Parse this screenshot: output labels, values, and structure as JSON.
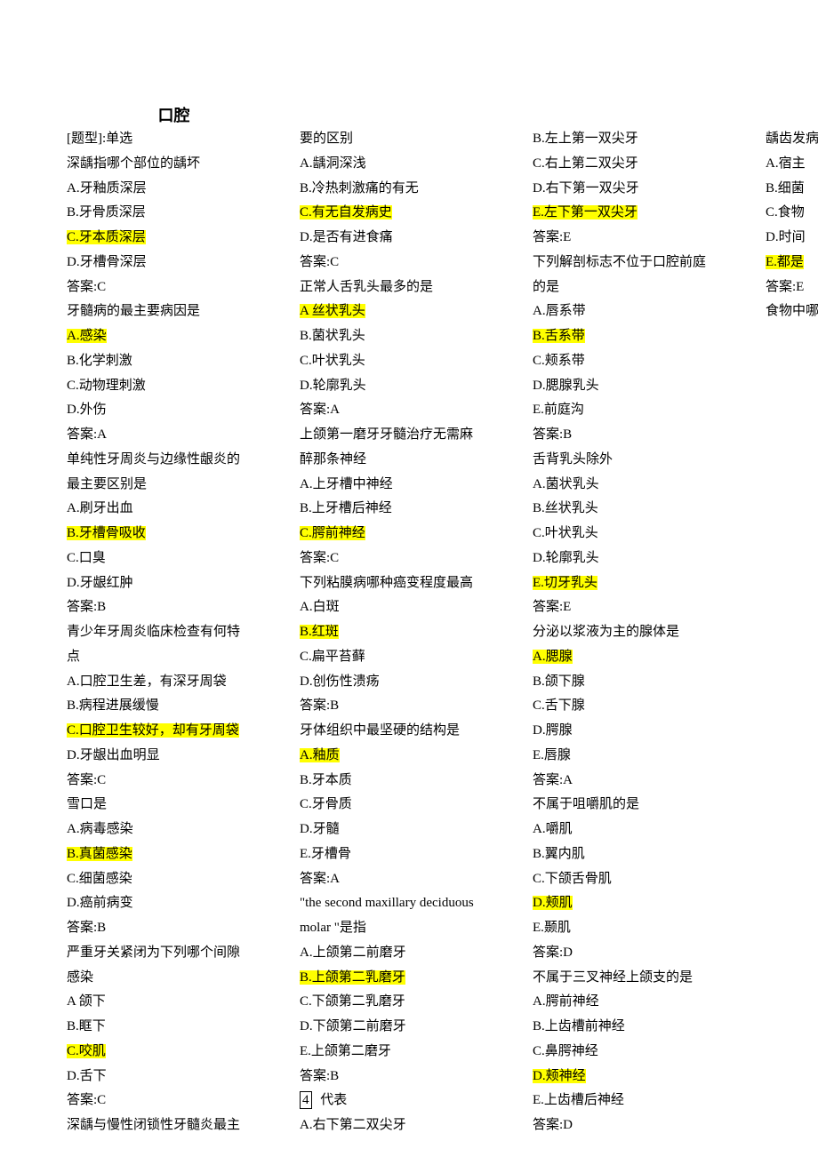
{
  "title": "口腔",
  "lines": [
    {
      "text": "[题型]:单选",
      "hl": false
    },
    {
      "text": "深龋指哪个部位的龋坏",
      "hl": false
    },
    {
      "text": "A.牙釉质深层",
      "hl": false
    },
    {
      "text": "B.牙骨质深层",
      "hl": false
    },
    {
      "text": "C.牙本质深层",
      "hl": true
    },
    {
      "text": "D.牙槽骨深层",
      "hl": false
    },
    {
      "text": "答案:C",
      "hl": false
    },
    {
      "text": "牙髓病的最主要病因是",
      "hl": false
    },
    {
      "text": "A.感染",
      "hl": true
    },
    {
      "text": "B.化学刺激",
      "hl": false
    },
    {
      "text": "C.动物理刺激",
      "hl": false
    },
    {
      "text": "D.外伤",
      "hl": false
    },
    {
      "text": "答案:A",
      "hl": false
    },
    {
      "text": "单纯性牙周炎与边缘性龈炎的",
      "hl": false
    },
    {
      "text": "最主要区别是",
      "hl": false
    },
    {
      "text": "A.刷牙出血",
      "hl": false
    },
    {
      "text": "B.牙槽骨吸收",
      "hl": true
    },
    {
      "text": "C.口臭",
      "hl": false
    },
    {
      "text": "D.牙龈红肿",
      "hl": false
    },
    {
      "text": "答案:B",
      "hl": false
    },
    {
      "text": "青少年牙周炎临床检查有何特",
      "hl": false
    },
    {
      "text": "点",
      "hl": false
    },
    {
      "text": "A.口腔卫生差，有深牙周袋",
      "hl": false
    },
    {
      "text": "B.病程进展缓慢",
      "hl": false
    },
    {
      "text": "C.口腔卫生较好，却有牙周袋",
      "hl": true
    },
    {
      "text": "D.牙龈出血明显",
      "hl": false
    },
    {
      "text": "答案:C",
      "hl": false
    },
    {
      "text": "雪口是",
      "hl": false
    },
    {
      "text": "A.病毒感染",
      "hl": false
    },
    {
      "text": "B.真菌感染",
      "hl": true
    },
    {
      "text": "C.细菌感染",
      "hl": false
    },
    {
      "text": "D.癌前病变",
      "hl": false
    },
    {
      "text": "答案:B",
      "hl": false
    },
    {
      "text": "严重牙关紧闭为下列哪个间隙",
      "hl": false
    },
    {
      "text": "感染",
      "hl": false
    },
    {
      "text": "A 颌下",
      "hl": false
    },
    {
      "text": "B.眶下",
      "hl": false
    },
    {
      "text": "C.咬肌",
      "hl": true
    },
    {
      "text": "D.舌下",
      "hl": false
    },
    {
      "text": "答案:C",
      "hl": false
    },
    {
      "text": "深龋与慢性闭锁性牙髓炎最主",
      "hl": false
    },
    {
      "text": "要的区别",
      "hl": false
    },
    {
      "text": "A.龋洞深浅",
      "hl": false
    },
    {
      "text": "B.冷热刺激痛的有无",
      "hl": false
    },
    {
      "text": "C.有无自发病史",
      "hl": true
    },
    {
      "text": "D.是否有进食痛",
      "hl": false
    },
    {
      "text": "答案:C",
      "hl": false
    },
    {
      "text": "正常人舌乳头最多的是",
      "hl": false
    },
    {
      "text": "A 丝状乳头",
      "hl": true
    },
    {
      "text": "B.菌状乳头",
      "hl": false
    },
    {
      "text": "C.叶状乳头",
      "hl": false
    },
    {
      "text": "D.轮廓乳头",
      "hl": false
    },
    {
      "text": "答案:A",
      "hl": false
    },
    {
      "text": "上颌第一磨牙牙髓治疗无需麻",
      "hl": false
    },
    {
      "text": "醉那条神经",
      "hl": false
    },
    {
      "text": "A.上牙槽中神经",
      "hl": false
    },
    {
      "text": "B.上牙槽后神经",
      "hl": false
    },
    {
      "text": "C.腭前神经",
      "hl": true
    },
    {
      "text": "答案:C",
      "hl": false
    },
    {
      "text": "下列粘膜病哪种癌变程度最高",
      "hl": false
    },
    {
      "text": "A.白斑",
      "hl": false
    },
    {
      "text": "B.红斑",
      "hl": true
    },
    {
      "text": "C.扁平苔藓",
      "hl": false
    },
    {
      "text": "D.创伤性溃疡",
      "hl": false
    },
    {
      "text": "答案:B",
      "hl": false
    },
    {
      "text": "牙体组织中最坚硬的结构是",
      "hl": false
    },
    {
      "text": "A.釉质",
      "hl": true
    },
    {
      "text": "B.牙本质",
      "hl": false
    },
    {
      "text": "C.牙骨质",
      "hl": false
    },
    {
      "text": "D.牙髓",
      "hl": false
    },
    {
      "text": "E.牙槽骨",
      "hl": false
    },
    {
      "text": "答案:A",
      "hl": false
    },
    {
      "text": "\"the second maxillary deciduous",
      "hl": false
    },
    {
      "text": "molar \"是指",
      "hl": false
    },
    {
      "text": "A.上颌第二前磨牙",
      "hl": false
    },
    {
      "text": "B.上颌第二乳磨牙 ",
      "hl": true
    },
    {
      "text": "C.下颌第二乳磨牙",
      "hl": false
    },
    {
      "text": "D.下颌第二前磨牙",
      "hl": false
    },
    {
      "text": "E.上颌第二磨牙",
      "hl": false
    },
    {
      "text": "答案:B",
      "hl": false
    },
    {
      "text": "",
      "hl": false,
      "special": "box4"
    },
    {
      "text": "A.右下第二双尖牙",
      "hl": false
    },
    {
      "text": "B.左上第一双尖牙",
      "hl": false
    },
    {
      "text": "C.右上第二双尖牙",
      "hl": false
    },
    {
      "text": "D.右下第一双尖牙",
      "hl": false
    },
    {
      "text": "E.左下第一双尖牙 ",
      "hl": true
    },
    {
      "text": "答案:E",
      "hl": false
    },
    {
      "text": "下列解剖标志不位于口腔前庭",
      "hl": false
    },
    {
      "text": "的是",
      "hl": false
    },
    {
      "text": "A.唇系带",
      "hl": false
    },
    {
      "text": "B.舌系带",
      "hl": true
    },
    {
      "text": "C.颊系带",
      "hl": false
    },
    {
      "text": "D.腮腺乳头",
      "hl": false
    },
    {
      "text": "E.前庭沟",
      "hl": false
    },
    {
      "text": "答案:B",
      "hl": false
    },
    {
      "text": "舌背乳头除外",
      "hl": false
    },
    {
      "text": "A.菌状乳头",
      "hl": false
    },
    {
      "text": "B.丝状乳头",
      "hl": false
    },
    {
      "text": "C.叶状乳头",
      "hl": false
    },
    {
      "text": "D.轮廓乳头",
      "hl": false
    },
    {
      "text": "E.切牙乳头",
      "hl": true
    },
    {
      "text": "答案:E",
      "hl": false
    },
    {
      "text": "分泌以浆液为主的腺体是",
      "hl": false
    },
    {
      "text": "A.腮腺",
      "hl": true
    },
    {
      "text": "B.颌下腺",
      "hl": false
    },
    {
      "text": "C.舌下腺",
      "hl": false
    },
    {
      "text": "D.腭腺",
      "hl": false
    },
    {
      "text": "E.唇腺",
      "hl": false
    },
    {
      "text": "答案:A",
      "hl": false
    },
    {
      "text": "不属于咀嚼肌的是",
      "hl": false
    },
    {
      "text": "A.嚼肌",
      "hl": false
    },
    {
      "text": "B.翼内肌",
      "hl": false
    },
    {
      "text": "C.下颌舌骨肌",
      "hl": false
    },
    {
      "text": "D.颊肌",
      "hl": true
    },
    {
      "text": "E.颞肌",
      "hl": false
    },
    {
      "text": "答案:D",
      "hl": false
    },
    {
      "text": "不属于三叉神经上颌支的是",
      "hl": false
    },
    {
      "text": "A.腭前神经",
      "hl": false
    },
    {
      "text": "B.上齿槽前神经",
      "hl": false
    },
    {
      "text": "C.鼻腭神经",
      "hl": false
    },
    {
      "text": "D.颊神经",
      "hl": true
    },
    {
      "text": "E.上齿槽后神经",
      "hl": false
    },
    {
      "text": "答案:D",
      "hl": false
    },
    {
      "text": "龋齿发病的因素有",
      "hl": false
    },
    {
      "text": "A.宿主",
      "hl": false
    },
    {
      "text": "B.细菌",
      "hl": false
    },
    {
      "text": "C.食物",
      "hl": false
    },
    {
      "text": "D.时间",
      "hl": false
    },
    {
      "text": "E.都是",
      "hl": true
    },
    {
      "text": "答案:E",
      "hl": false
    },
    {
      "text": "食物中哪种成分在龋发生中至",
      "hl": false
    }
  ],
  "box4_text": "4",
  "box4_after": "   代表"
}
